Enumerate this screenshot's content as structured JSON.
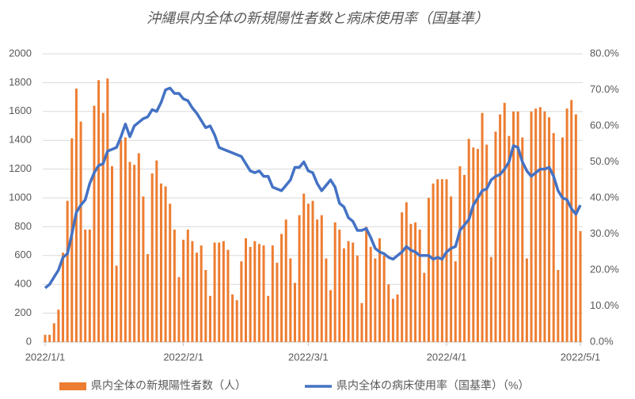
{
  "chart_data": {
    "type": "bar_line",
    "title": "沖縄県内全体の新規陽性者数と病床使用率（国基準）",
    "x": [
      "2022/1/1",
      "2022/1/2",
      "2022/1/3",
      "2022/1/4",
      "2022/1/5",
      "2022/1/6",
      "2022/1/7",
      "2022/1/8",
      "2022/1/9",
      "2022/1/10",
      "2022/1/11",
      "2022/1/12",
      "2022/1/13",
      "2022/1/14",
      "2022/1/15",
      "2022/1/16",
      "2022/1/17",
      "2022/1/18",
      "2022/1/19",
      "2022/1/20",
      "2022/1/21",
      "2022/1/22",
      "2022/1/23",
      "2022/1/24",
      "2022/1/25",
      "2022/1/26",
      "2022/1/27",
      "2022/1/28",
      "2022/1/29",
      "2022/1/30",
      "2022/1/31",
      "2022/2/1",
      "2022/2/2",
      "2022/2/3",
      "2022/2/4",
      "2022/2/5",
      "2022/2/6",
      "2022/2/7",
      "2022/2/8",
      "2022/2/9",
      "2022/2/10",
      "2022/2/11",
      "2022/2/12",
      "2022/2/13",
      "2022/2/14",
      "2022/2/15",
      "2022/2/16",
      "2022/2/17",
      "2022/2/18",
      "2022/2/19",
      "2022/2/20",
      "2022/2/21",
      "2022/2/22",
      "2022/2/23",
      "2022/2/24",
      "2022/2/25",
      "2022/2/26",
      "2022/2/27",
      "2022/2/28",
      "2022/3/1",
      "2022/3/2",
      "2022/3/3",
      "2022/3/4",
      "2022/3/5",
      "2022/3/6",
      "2022/3/7",
      "2022/3/8",
      "2022/3/9",
      "2022/3/10",
      "2022/3/11",
      "2022/3/12",
      "2022/3/13",
      "2022/3/14",
      "2022/3/15",
      "2022/3/16",
      "2022/3/17",
      "2022/3/18",
      "2022/3/19",
      "2022/3/20",
      "2022/3/21",
      "2022/3/22",
      "2022/3/23",
      "2022/3/24",
      "2022/3/25",
      "2022/3/26",
      "2022/3/27",
      "2022/3/28",
      "2022/3/29",
      "2022/3/30",
      "2022/3/31",
      "2022/4/1",
      "2022/4/2",
      "2022/4/3",
      "2022/4/4",
      "2022/4/5",
      "2022/4/6",
      "2022/4/7",
      "2022/4/8",
      "2022/4/9",
      "2022/4/10",
      "2022/4/11",
      "2022/4/12",
      "2022/4/13",
      "2022/4/14",
      "2022/4/15",
      "2022/4/16",
      "2022/4/17",
      "2022/4/18",
      "2022/4/19",
      "2022/4/20",
      "2022/4/21",
      "2022/4/22",
      "2022/4/23",
      "2022/4/24",
      "2022/4/25",
      "2022/4/26",
      "2022/4/27",
      "2022/4/28",
      "2022/4/29",
      "2022/4/30",
      "2022/5/1"
    ],
    "xticks": [
      "2022/1/1",
      "2022/2/1",
      "2022/3/1",
      "2022/4/1",
      "2022/5/1"
    ],
    "series": [
      {
        "name": "県内全体の新規陽性者数（人）",
        "color": "#ed7d31",
        "type": "bar",
        "values": [
          50,
          50,
          130,
          225,
          620,
          980,
          1414,
          1759,
          1530,
          780,
          780,
          1640,
          1817,
          1590,
          1829,
          1220,
          530,
          1400,
          1420,
          1250,
          1230,
          1310,
          1010,
          610,
          1170,
          1260,
          1100,
          1080,
          960,
          780,
          450,
          710,
          780,
          700,
          620,
          670,
          500,
          320,
          690,
          690,
          700,
          640,
          330,
          290,
          560,
          720,
          660,
          700,
          680,
          670,
          320,
          670,
          550,
          750,
          850,
          580,
          410,
          880,
          1030,
          960,
          980,
          850,
          880,
          580,
          360,
          830,
          780,
          650,
          700,
          690,
          600,
          270,
          800,
          660,
          580,
          720,
          600,
          400,
          300,
          330,
          900,
          970,
          820,
          830,
          780,
          480,
          1000,
          1100,
          1130,
          1130,
          1130,
          1010,
          560,
          1220,
          1160,
          1410,
          1350,
          1340,
          1590,
          1370,
          590,
          1460,
          1580,
          1660,
          1430,
          1600,
          1600,
          1420,
          580,
          1600,
          1620,
          1630,
          1600,
          1560,
          1450,
          500,
          1420,
          1620,
          1680,
          1580,
          770
        ]
      },
      {
        "name": "県内全体の病床使用率（国基準）（%）",
        "color": "#4472c4",
        "type": "line",
        "axis": "y2",
        "values": [
          15,
          16,
          18,
          20,
          23.5,
          24.5,
          30,
          36,
          38,
          39.5,
          44,
          47,
          49,
          49.5,
          53,
          53.5,
          54,
          57,
          60.5,
          57,
          60,
          61,
          62,
          62.5,
          64.5,
          64,
          66.5,
          70,
          70.5,
          69,
          69,
          67.5,
          67,
          65,
          63.5,
          61.5,
          59.5,
          60,
          57.5,
          54,
          53.5,
          53,
          52.5,
          52,
          51.5,
          49.5,
          47.5,
          47,
          47.5,
          46,
          46,
          43,
          42.5,
          42,
          43.5,
          45,
          48.5,
          48.5,
          50,
          47.5,
          47,
          44,
          42,
          43.5,
          45,
          43,
          38.5,
          37.5,
          34.5,
          33.5,
          31,
          31,
          31.5,
          29,
          26,
          25,
          24.5,
          23.5,
          23,
          24,
          25,
          26.5,
          25.5,
          25,
          24,
          24,
          24,
          23,
          23.5,
          23,
          25,
          26,
          26.5,
          31,
          32.5,
          34,
          38,
          40,
          42,
          42.5,
          45,
          46,
          46.5,
          48,
          50,
          54.5,
          54,
          50,
          47.5,
          46,
          47,
          48,
          48,
          48.5,
          46,
          42,
          40,
          39.5,
          37,
          35.5,
          38
        ]
      }
    ],
    "ylim": [
      0,
      2000
    ],
    "yticks": [
      0,
      200,
      400,
      600,
      800,
      1000,
      1200,
      1400,
      1600,
      1800,
      2000
    ],
    "y2lim": [
      0,
      80
    ],
    "y2ticks": [
      {
        "value": 0,
        "label": "0.0%"
      },
      {
        "value": 10,
        "label": "10.0%"
      },
      {
        "value": 20,
        "label": "20.0%"
      },
      {
        "value": 30,
        "label": "30.0%"
      },
      {
        "value": 40,
        "label": "40.0%"
      },
      {
        "value": 50,
        "label": "50.0%"
      },
      {
        "value": 60,
        "label": "60.0%"
      },
      {
        "value": 70,
        "label": "70.0%"
      },
      {
        "value": 80,
        "label": "80.0%"
      }
    ],
    "legend": "bottom"
  }
}
